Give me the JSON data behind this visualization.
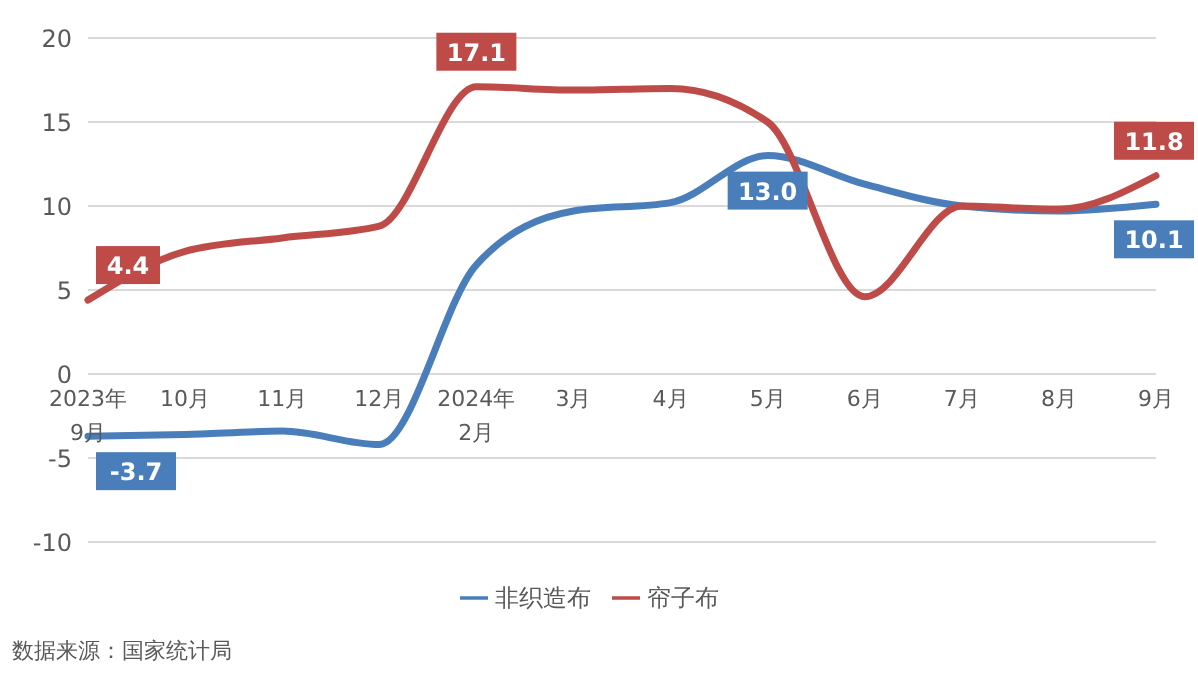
{
  "chart_data": {
    "type": "line",
    "categories": [
      "2023年\n9月",
      "10月",
      "11月",
      "12月",
      "2024年\n2月",
      "3月",
      "4月",
      "5月",
      "6月",
      "7月",
      "8月",
      "9月"
    ],
    "series": [
      {
        "name": "非织造布",
        "color": "#4a7ebb",
        "values": [
          -3.7,
          -3.6,
          -3.4,
          -4.2,
          6.5,
          9.7,
          10.2,
          13.0,
          11.3,
          10.0,
          9.7,
          10.1
        ],
        "value_labels": [
          "-3.7",
          null,
          null,
          null,
          null,
          null,
          null,
          "13.0",
          null,
          null,
          null,
          "10.1"
        ]
      },
      {
        "name": "帘子布",
        "color": "#be4b48",
        "values": [
          4.4,
          7.3,
          8.1,
          8.8,
          17.1,
          16.9,
          17.0,
          15.0,
          4.6,
          10.0,
          9.8,
          11.8
        ],
        "value_labels": [
          "4.4",
          null,
          null,
          null,
          "17.1",
          null,
          null,
          null,
          null,
          null,
          null,
          "11.8"
        ]
      }
    ],
    "ylim": [
      -10,
      20
    ],
    "yticks": [
      -10,
      -5,
      0,
      5,
      10,
      15,
      20
    ],
    "grid": "y",
    "legend": "bottom",
    "marker": "none",
    "line_style": "solid",
    "annotations": [
      "数据来源：国家统计局"
    ]
  }
}
